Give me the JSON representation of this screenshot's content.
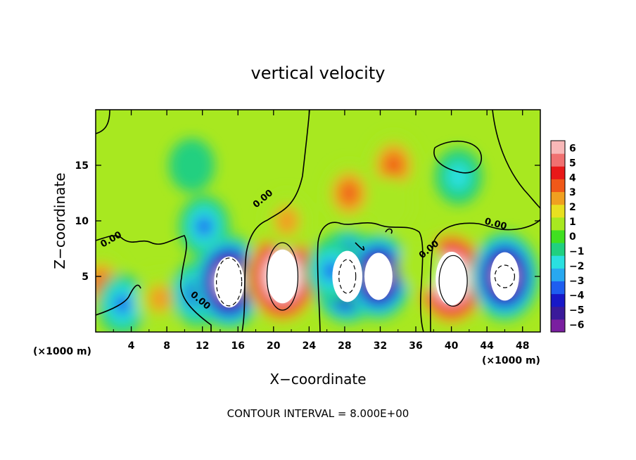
{
  "chart_data": {
    "type": "heatmap",
    "title": "vertical velocity",
    "xlabel": "X−coordinate",
    "ylabel": "Z−coordinate",
    "x_unit_left": "(×1000 m)",
    "x_unit_right": "(×1000 m)",
    "xlim": [
      0,
      50
    ],
    "ylim": [
      0,
      20
    ],
    "x_ticks": [
      4,
      8,
      12,
      16,
      20,
      24,
      28,
      32,
      36,
      40,
      44,
      48
    ],
    "x_tick_labels": [
      "4",
      "8",
      "12",
      "16",
      "20",
      "24",
      "28",
      "32",
      "36",
      "40",
      "44",
      "48"
    ],
    "y_ticks": [
      5,
      10,
      15
    ],
    "y_tick_labels": [
      "5",
      "10",
      "15"
    ],
    "colorbar": {
      "min": -6,
      "max": 6,
      "ticks": [
        6,
        5,
        4,
        3,
        2,
        1,
        0,
        -1,
        -2,
        -3,
        -4,
        -5,
        -6
      ],
      "tick_labels": [
        "6",
        "5",
        "4",
        "3",
        "2",
        "1",
        "0",
        "−1",
        "−2",
        "−3",
        "−4",
        "−5",
        "−6"
      ],
      "colors": [
        "#7a1fa0",
        "#3a1a9a",
        "#1818c8",
        "#1e5ef0",
        "#28a8f0",
        "#2ae0e0",
        "#20d080",
        "#40e020",
        "#a8e820",
        "#e8e020",
        "#f0a020",
        "#f05818",
        "#e81818",
        "#f07070",
        "#f8b8b8"
      ]
    },
    "contour_interval_text": "CONTOUR INTERVAL = 8.000E+00",
    "contour_labels": [
      "0.00",
      "0.00",
      "0.00",
      "0.00",
      "0.00"
    ],
    "features": [
      {
        "x": 0.6,
        "z": 4.3,
        "w": 2.5
      },
      {
        "x": 3.0,
        "z": 2.5,
        "w": -2.5
      },
      {
        "x": 7.2,
        "z": 3.0,
        "w": 1.5
      },
      {
        "x": 11.5,
        "z": 3.5,
        "w": -3.5
      },
      {
        "x": 12.2,
        "z": 9.5,
        "w": -2.5
      },
      {
        "x": 10.8,
        "z": 15.0,
        "w": -1.0
      },
      {
        "x": 15.0,
        "z": 4.5,
        "w": -9.0
      },
      {
        "x": 21.0,
        "z": 5.0,
        "w": 10.0
      },
      {
        "x": 21.5,
        "z": 10.0,
        "w": 2.0
      },
      {
        "x": 28.3,
        "z": 5.0,
        "w": -9.0
      },
      {
        "x": 31.8,
        "z": 5.0,
        "w": -7.5
      },
      {
        "x": 26.5,
        "z": 5.5,
        "w": -3.0
      },
      {
        "x": 28.5,
        "z": 12.5,
        "w": 2.5
      },
      {
        "x": 33.5,
        "z": 15.0,
        "w": 3.0
      },
      {
        "x": 33.0,
        "z": 11.5,
        "w": 1.0
      },
      {
        "x": 40.0,
        "z": 4.8,
        "w": 10.0
      },
      {
        "x": 46.0,
        "z": 5.0,
        "w": -8.0
      },
      {
        "x": 40.8,
        "z": 14.0,
        "w": -1.5
      },
      {
        "x": 36.5,
        "z": 6.0,
        "w": 1.0
      }
    ]
  }
}
